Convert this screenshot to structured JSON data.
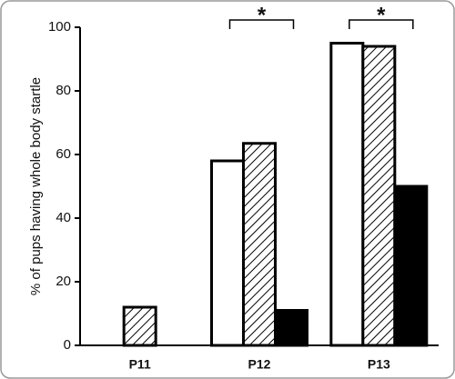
{
  "chart_data": {
    "type": "bar",
    "y_label": "% of pups having whole body startle",
    "categories": [
      "P11",
      "P12",
      "P13"
    ],
    "series": [
      {
        "color": "#ffffff",
        "values": [
          0,
          58,
          95
        ]
      },
      {
        "color": "#000000",
        "pattern": "hatch",
        "values": [
          12,
          63.5,
          94
        ]
      },
      {
        "color": "#000000",
        "values": [
          0,
          11,
          50
        ]
      }
    ],
    "ylim": [
      0,
      100
    ],
    "yticks": [
      0,
      20,
      40,
      60,
      80,
      100
    ],
    "annotations": [
      {
        "text": "*",
        "category": "P12"
      },
      {
        "text": "*",
        "category": "P13"
      }
    ]
  }
}
